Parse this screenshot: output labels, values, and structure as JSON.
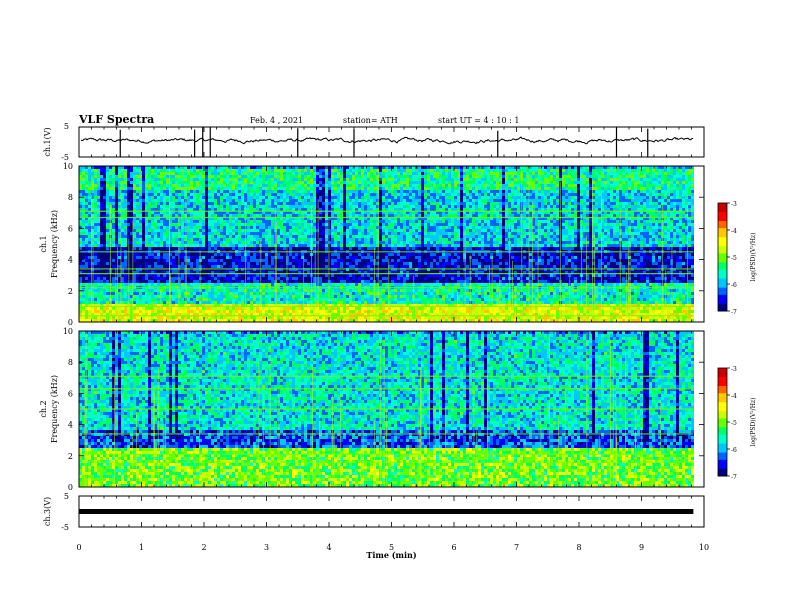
{
  "header": {
    "title": "VLF Spectra",
    "date": "Feb. 4 , 2021",
    "station": "station= ATH",
    "start": "start UT = 4 : 10 : 1"
  },
  "colors": {
    "waveform": "#000000",
    "spectrogram_palette": [
      "#000080",
      "#0000ff",
      "#0064ff",
      "#00c8ff",
      "#00ffc8",
      "#00ff64",
      "#64ff00",
      "#c8ff00",
      "#ffff00",
      "#ffc800",
      "#ff6400",
      "#ff0000",
      "#c80000"
    ]
  },
  "chart_data": [
    {
      "type": "line",
      "id": "ch1-waveform",
      "ylabel": "ch.1(V)",
      "ylim": [
        -5,
        5
      ],
      "y_ticks": [
        "5",
        "-5"
      ],
      "description_level_V": 0.5,
      "xlim": [
        0,
        10
      ]
    },
    {
      "type": "heatmap",
      "id": "ch1-spectrogram",
      "ylabel": "ch.1\nFrequency (kHz)",
      "ylim": [
        0,
        10
      ],
      "y_ticks": [
        "0",
        "2",
        "4",
        "6",
        "8",
        "10"
      ],
      "xlim": [
        0,
        9.83
      ],
      "colorbar": {
        "label": "log(PSD)(V²/Hz)",
        "ticks": [
          "-3",
          "-4",
          "-5",
          "-6",
          "-7"
        ],
        "range": [
          -7,
          -3
        ]
      },
      "bands_khz": [
        {
          "from": 0,
          "to": 1.2,
          "level": -4.5
        },
        {
          "from": 1.2,
          "to": 2.6,
          "level": -5.6
        },
        {
          "from": 2.6,
          "to": 5.0,
          "level": -6.6
        },
        {
          "from": 5.0,
          "to": 8.5,
          "level": -5.8
        },
        {
          "from": 8.5,
          "to": 10,
          "level": -5.4
        }
      ],
      "lines_khz": [
        0.4,
        1.0,
        2.2,
        3.1,
        3.4,
        4.5,
        6.7,
        7.1
      ]
    },
    {
      "type": "heatmap",
      "id": "ch2-spectrogram",
      "ylabel": "ch.2\nFrequency (kHz)",
      "ylim": [
        0,
        10
      ],
      "y_ticks": [
        "0",
        "2",
        "4",
        "6",
        "8",
        "10"
      ],
      "xlim": [
        0,
        9.83
      ],
      "colorbar": {
        "label": "log(PSD)(V²/Hz)",
        "ticks": [
          "-3",
          "-4",
          "-5",
          "-6",
          "-7"
        ],
        "range": [
          -7,
          -3
        ]
      },
      "bands_khz": [
        {
          "from": 0,
          "to": 1.0,
          "level": -5.0
        },
        {
          "from": 1.0,
          "to": 2.6,
          "level": -5.0
        },
        {
          "from": 2.6,
          "to": 3.8,
          "level": -6.3
        },
        {
          "from": 3.8,
          "to": 10,
          "level": -5.7
        }
      ],
      "lines_khz": [
        1.6,
        2.1,
        3.4,
        5.0,
        6.3,
        7.1
      ]
    },
    {
      "type": "line",
      "id": "ch3-waveform",
      "ylabel": "ch.3(V)",
      "ylim": [
        -5,
        5
      ],
      "y_ticks": [
        "5",
        "-5"
      ],
      "level_V": 0,
      "xlim": [
        0,
        9.83
      ]
    }
  ],
  "x_axis": {
    "label": "Time (min)",
    "ticks": [
      "0",
      "1",
      "2",
      "3",
      "4",
      "5",
      "6",
      "7",
      "8",
      "9",
      "10"
    ],
    "range": [
      0,
      10
    ]
  }
}
